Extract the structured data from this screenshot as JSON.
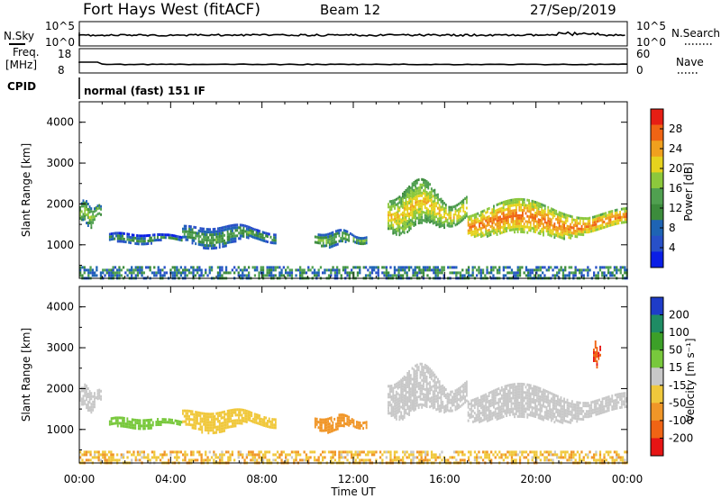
{
  "header": {
    "station": "Fort Hays West (fitACF)",
    "beam": "Beam 12",
    "date": "27/Sep/2019"
  },
  "strips": {
    "nsky": {
      "label": "N.Sky",
      "ticks": [
        "10^5",
        "10^0"
      ]
    },
    "nsearch": {
      "label": "N.Search",
      "ticks": [
        "10^5",
        "10^0"
      ]
    },
    "freq": {
      "label_line1": "Freq.",
      "label_line2": "[MHz]",
      "ticks": [
        "18",
        "8"
      ]
    },
    "nave": {
      "label": "Nave",
      "ticks": [
        "60",
        "0"
      ]
    },
    "cpid": {
      "label": "CPID",
      "value": "normal (fast) 151 IF"
    }
  },
  "chart_data": [
    {
      "type": "heatmap",
      "name": "power",
      "xlabel": "",
      "ylabel": "Slant Range [km]",
      "ylim": [
        180,
        4500
      ],
      "yticks": [
        "1000",
        "2000",
        "3000",
        "4000"
      ],
      "colorbar_label": "Power [dB]",
      "colorbar_ticks": [
        "4",
        "8",
        "12",
        "16",
        "20",
        "24",
        "28"
      ],
      "colorbar_range": [
        0,
        32
      ],
      "colors": [
        "#0a1ee6",
        "#2850c8",
        "#1e64b4",
        "#3c8c3c",
        "#50a050",
        "#8cc83c",
        "#e6d21e",
        "#f0a01e",
        "#f06414",
        "#e61e14"
      ],
      "echo_regions": [
        {
          "t0": 0.0,
          "t1": 0.95,
          "r0": 1500,
          "r1": 2050,
          "power": 14
        },
        {
          "t0": 1.3,
          "t1": 4.5,
          "r0": 1050,
          "r1": 1300,
          "power": 8
        },
        {
          "t0": 4.5,
          "t1": 8.6,
          "r0": 1000,
          "r1": 1500,
          "power": 10
        },
        {
          "t0": 10.3,
          "t1": 12.6,
          "r0": 1000,
          "r1": 1350,
          "power": 12
        },
        {
          "t0": 13.5,
          "t1": 17.0,
          "r0": 1350,
          "r1": 2450,
          "power": 18
        },
        {
          "t0": 17.0,
          "t1": 24.0,
          "r0": 1200,
          "r1": 2000,
          "power": 22
        }
      ],
      "near_range_band": {
        "r0": 180,
        "r1": 480,
        "power": 10
      }
    },
    {
      "type": "heatmap",
      "name": "velocity",
      "xlabel": "Time UT",
      "ylabel": "Slant Range [km]",
      "ylim": [
        180,
        4500
      ],
      "yticks": [
        "1000",
        "2000",
        "3000",
        "4000"
      ],
      "xticks": [
        "00:00",
        "04:00",
        "08:00",
        "12:00",
        "16:00",
        "20:00",
        "00:00"
      ],
      "xlim": [
        0,
        24
      ],
      "colorbar_label": "Velocity [m s⁻¹]",
      "colorbar_ticks": [
        "200",
        "100",
        "50",
        "15",
        "-15",
        "-50",
        "-100",
        "-200"
      ],
      "colors": [
        "#1e3cc8",
        "#1e8c64",
        "#3ca028",
        "#78c83c",
        "#c8c8c8",
        "#f0c83c",
        "#f09628",
        "#f06414",
        "#e61414"
      ],
      "echo_regions": [
        {
          "t0": 0.0,
          "t1": 0.95,
          "r0": 1500,
          "r1": 2050,
          "velocity": 0
        },
        {
          "t0": 1.3,
          "t1": 4.5,
          "r0": 1050,
          "r1": 1300,
          "velocity": 30
        },
        {
          "t0": 4.5,
          "t1": 8.6,
          "r0": 1000,
          "r1": 1500,
          "velocity": -40
        },
        {
          "t0": 10.3,
          "t1": 12.6,
          "r0": 1000,
          "r1": 1350,
          "velocity": -60
        },
        {
          "t0": 13.5,
          "t1": 17.0,
          "r0": 1350,
          "r1": 2450,
          "velocity": 0
        },
        {
          "t0": 17.0,
          "t1": 24.0,
          "r0": 1200,
          "r1": 2000,
          "velocity": 0
        },
        {
          "t0": 22.5,
          "t1": 22.8,
          "r0": 2600,
          "r1": 3100,
          "velocity": -200
        }
      ],
      "near_range_band": {
        "r0": 180,
        "r1": 480,
        "velocity": -40
      }
    }
  ]
}
